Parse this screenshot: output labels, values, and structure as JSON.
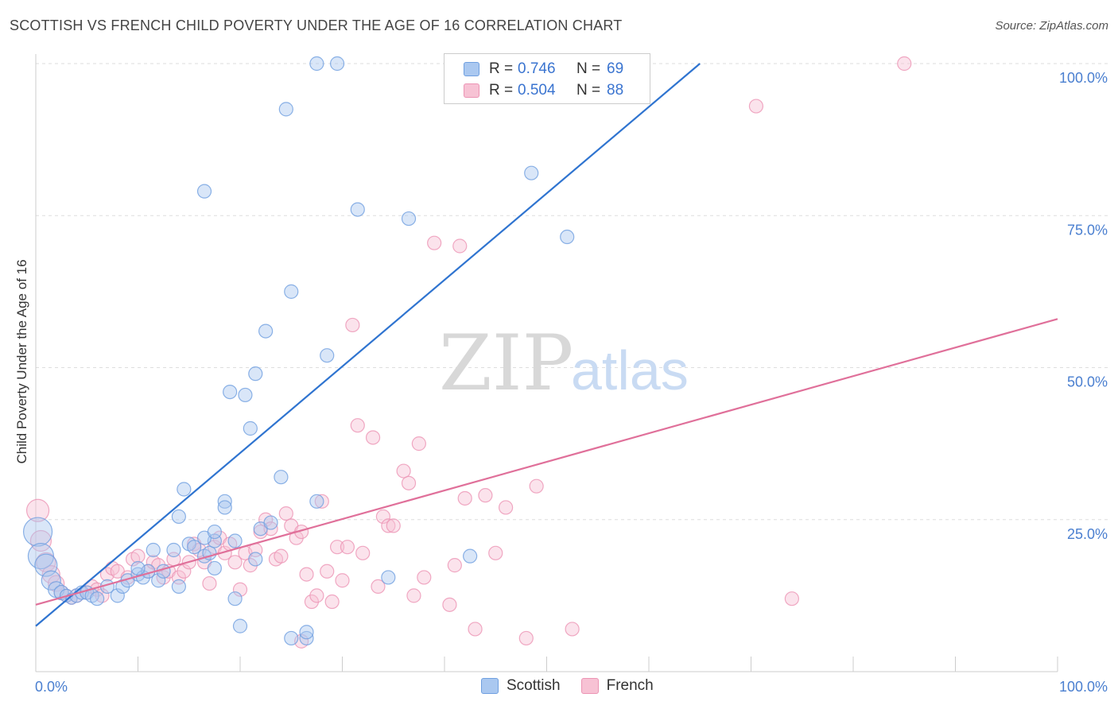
{
  "title": "SCOTTISH VS FRENCH CHILD POVERTY UNDER THE AGE OF 16 CORRELATION CHART",
  "source": "Source: ZipAtlas.com",
  "watermark": {
    "zip": "ZIP",
    "atlas": "atlas"
  },
  "legend": {
    "r_label": "R =",
    "n_label": "N =",
    "rows": [
      {
        "r": "0.746",
        "n": "69"
      },
      {
        "r": "0.504",
        "n": "88"
      }
    ]
  },
  "colors": {
    "scottish_fill": "#aac8f0",
    "scottish_stroke": "#6f9fe0",
    "scottish_line": "#2f74d0",
    "french_fill": "#f7c2d4",
    "french_stroke": "#ec94b4",
    "french_line": "#e0709a",
    "tick_color": "#4a7fd0"
  },
  "chart_data": {
    "type": "scatter",
    "title": "SCOTTISH VS FRENCH CHILD POVERTY UNDER THE AGE OF 16 CORRELATION CHART",
    "xlabel": "",
    "ylabel": "Child Poverty Under the Age of 16",
    "xlim": [
      0,
      100
    ],
    "ylim": [
      0,
      100
    ],
    "x_tick_labels": [
      "0.0%",
      "100.0%"
    ],
    "y_ticks": [
      25,
      50,
      75,
      100
    ],
    "y_tick_labels": [
      "25.0%",
      "50.0%",
      "75.0%",
      "100.0%"
    ],
    "grid": "horizontal dashed",
    "legend_position": "top-center",
    "series": [
      {
        "name": "Scottish",
        "r": 0.746,
        "n": 69,
        "trendline": {
          "x": [
            0,
            65
          ],
          "y": [
            7.5,
            100
          ]
        },
        "points": [
          [
            0.2,
            23,
            18
          ],
          [
            0.5,
            19,
            16
          ],
          [
            1.0,
            17.5,
            14
          ],
          [
            1.5,
            15,
            12
          ],
          [
            2.0,
            13.5,
            10
          ],
          [
            2.5,
            13,
            9
          ],
          [
            3.0,
            12.5,
            8
          ],
          [
            3.5,
            12,
            7
          ],
          [
            4.0,
            12.5,
            6
          ],
          [
            4.5,
            13,
            6
          ],
          [
            5.0,
            13,
            6
          ],
          [
            5.5,
            12.5,
            6
          ],
          [
            6.0,
            12,
            6
          ],
          [
            7.0,
            14,
            6
          ],
          [
            8.0,
            12.5,
            6
          ],
          [
            8.5,
            14,
            6
          ],
          [
            9.0,
            15,
            6
          ],
          [
            10.0,
            16,
            6
          ],
          [
            10.5,
            15.5,
            6
          ],
          [
            11.0,
            16.5,
            6
          ],
          [
            12.0,
            15,
            6
          ],
          [
            12.5,
            16.5,
            6
          ],
          [
            10.0,
            17,
            6
          ],
          [
            14.0,
            14,
            6
          ],
          [
            15.0,
            21,
            6
          ],
          [
            15.5,
            20.5,
            6
          ],
          [
            16.5,
            19,
            6
          ],
          [
            17.0,
            19.5,
            6
          ],
          [
            13.5,
            20,
            6
          ],
          [
            11.5,
            20,
            6
          ],
          [
            17.5,
            21.5,
            6
          ],
          [
            17.5,
            17,
            6
          ],
          [
            16.5,
            22,
            6
          ],
          [
            14.0,
            25.5,
            6
          ],
          [
            17.5,
            23,
            6
          ],
          [
            19.5,
            21.5,
            6
          ],
          [
            19.5,
            12,
            6
          ],
          [
            20.0,
            7.5,
            6
          ],
          [
            21.5,
            18.5,
            6
          ],
          [
            22.0,
            23.5,
            6
          ],
          [
            23.0,
            24.5,
            6
          ],
          [
            24.0,
            32,
            6
          ],
          [
            25.0,
            5.5,
            6
          ],
          [
            26.5,
            5.5,
            6
          ],
          [
            27.5,
            28,
            6
          ],
          [
            26.5,
            6.5,
            6
          ],
          [
            14.5,
            30,
            6
          ],
          [
            18.5,
            28,
            6
          ],
          [
            18.5,
            27,
            6
          ],
          [
            21.0,
            40,
            6
          ],
          [
            19.0,
            46,
            6
          ],
          [
            20.5,
            45.5,
            6
          ],
          [
            21.5,
            49,
            6
          ],
          [
            28.5,
            52,
            6
          ],
          [
            22.5,
            56,
            6
          ],
          [
            25.0,
            62.5,
            6
          ],
          [
            31.5,
            76,
            6
          ],
          [
            36.5,
            74.5,
            6
          ],
          [
            16.5,
            79,
            6
          ],
          [
            24.5,
            92.5,
            6
          ],
          [
            27.5,
            100,
            6
          ],
          [
            29.5,
            100,
            6
          ],
          [
            43.5,
            100,
            6
          ],
          [
            46.0,
            100,
            6
          ],
          [
            57.0,
            100,
            6
          ],
          [
            48.5,
            82,
            6
          ],
          [
            52.0,
            71.5,
            6
          ],
          [
            34.5,
            15.5,
            6
          ],
          [
            42.5,
            19,
            6
          ]
        ]
      },
      {
        "name": "French",
        "r": 0.504,
        "n": 88,
        "trendline": {
          "x": [
            0,
            100
          ],
          "y": [
            11,
            58
          ]
        },
        "points": [
          [
            0.2,
            26.5,
            14
          ],
          [
            0.5,
            21.5,
            13
          ],
          [
            1.0,
            18,
            12
          ],
          [
            1.5,
            16,
            11
          ],
          [
            2.0,
            14.5,
            10
          ],
          [
            2.5,
            13,
            9
          ],
          [
            3.0,
            12.5,
            8
          ],
          [
            3.5,
            12,
            7
          ],
          [
            4.0,
            12.5,
            6
          ],
          [
            5.0,
            13,
            6
          ],
          [
            5.5,
            14,
            6
          ],
          [
            6.0,
            13.5,
            6
          ],
          [
            6.5,
            12.5,
            6
          ],
          [
            7.0,
            16,
            6
          ],
          [
            7.5,
            17,
            6
          ],
          [
            8.0,
            16.5,
            6
          ],
          [
            9.0,
            15.5,
            6
          ],
          [
            9.5,
            18.5,
            6
          ],
          [
            10.0,
            19,
            6
          ],
          [
            11.0,
            16.5,
            6
          ],
          [
            11.5,
            18,
            6
          ],
          [
            12.0,
            17.5,
            6
          ],
          [
            12.5,
            15.5,
            6
          ],
          [
            13.0,
            16.5,
            6
          ],
          [
            13.5,
            18.5,
            6
          ],
          [
            14.0,
            15.5,
            6
          ],
          [
            14.5,
            16.5,
            6
          ],
          [
            15.0,
            18,
            6
          ],
          [
            15.5,
            21,
            6
          ],
          [
            16.0,
            20,
            6
          ],
          [
            16.5,
            18,
            6
          ],
          [
            17.0,
            14.5,
            6
          ],
          [
            17.5,
            20.5,
            6
          ],
          [
            18.0,
            22,
            6
          ],
          [
            18.5,
            19.5,
            6
          ],
          [
            19.0,
            21,
            6
          ],
          [
            19.5,
            18,
            6
          ],
          [
            20.0,
            13.5,
            6
          ],
          [
            20.5,
            19.5,
            6
          ],
          [
            21.0,
            17.5,
            6
          ],
          [
            21.5,
            20,
            6
          ],
          [
            22.0,
            23,
            6
          ],
          [
            22.5,
            25,
            6
          ],
          [
            23.0,
            23.5,
            6
          ],
          [
            23.5,
            18.5,
            6
          ],
          [
            24.0,
            19,
            6
          ],
          [
            24.5,
            26,
            6
          ],
          [
            25.0,
            24,
            6
          ],
          [
            25.5,
            22,
            6
          ],
          [
            26.0,
            23,
            6
          ],
          [
            26.5,
            16,
            6
          ],
          [
            27.0,
            11.5,
            6
          ],
          [
            27.5,
            12.5,
            6
          ],
          [
            28.0,
            28,
            6
          ],
          [
            28.5,
            16.5,
            6
          ],
          [
            29.0,
            11.5,
            6
          ],
          [
            29.5,
            20.5,
            6
          ],
          [
            30.0,
            15,
            6
          ],
          [
            30.5,
            20.5,
            6
          ],
          [
            31.0,
            57,
            6
          ],
          [
            31.5,
            40.5,
            6
          ],
          [
            32.0,
            19.5,
            6
          ],
          [
            33.0,
            38.5,
            6
          ],
          [
            33.5,
            14,
            6
          ],
          [
            34.0,
            25.5,
            6
          ],
          [
            34.5,
            24,
            6
          ],
          [
            35.0,
            24,
            6
          ],
          [
            36.0,
            33,
            6
          ],
          [
            36.5,
            31,
            6
          ],
          [
            37.0,
            12.5,
            6
          ],
          [
            37.5,
            37.5,
            6
          ],
          [
            38.0,
            15.5,
            6
          ],
          [
            39.0,
            70.5,
            6
          ],
          [
            40.5,
            11,
            6
          ],
          [
            41.0,
            17.5,
            6
          ],
          [
            41.5,
            70,
            6
          ],
          [
            42.0,
            28.5,
            6
          ],
          [
            43.0,
            7,
            6
          ],
          [
            44.0,
            29,
            6
          ],
          [
            45.0,
            19.5,
            6
          ],
          [
            46.0,
            27,
            6
          ],
          [
            48.0,
            5.5,
            6
          ],
          [
            49.0,
            30.5,
            6
          ],
          [
            52.5,
            7,
            6
          ],
          [
            70.5,
            93,
            6
          ],
          [
            74.0,
            12,
            6
          ],
          [
            85.0,
            100,
            6
          ],
          [
            26.0,
            5,
            6
          ]
        ]
      }
    ]
  }
}
